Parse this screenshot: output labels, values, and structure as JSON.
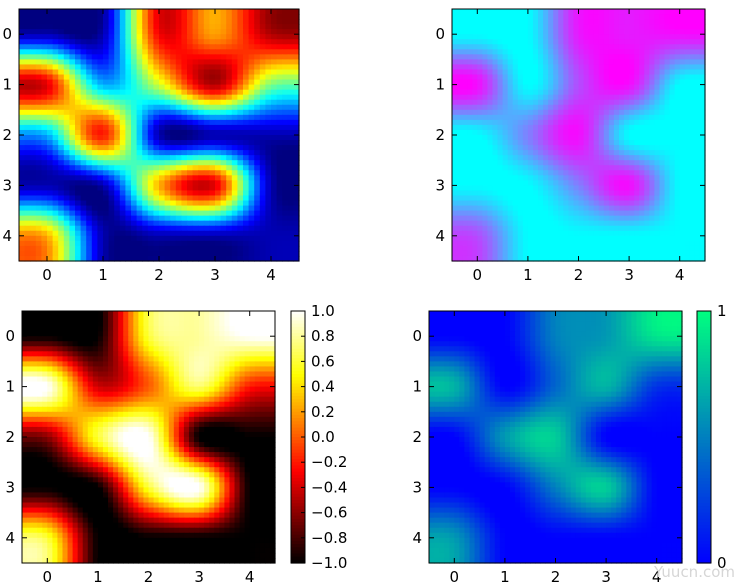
{
  "chart_data": [
    {
      "type": "heatmap",
      "colormap": "jet",
      "interpolation": "bicubic",
      "x": [
        0,
        1,
        2,
        3,
        4
      ],
      "y": [
        0,
        1,
        2,
        3,
        4
      ],
      "xlim": [
        -0.5,
        4.5
      ],
      "ylim": [
        4.5,
        -0.5
      ],
      "x_ticks": [
        "0",
        "1",
        "2",
        "3",
        "4"
      ],
      "y_ticks": [
        "0",
        "1",
        "2",
        "3",
        "4"
      ],
      "values": [
        [
          0.05,
          0.05,
          0.88,
          0.72,
          0.95
        ],
        [
          0.9,
          0.3,
          0.58,
          0.95,
          0.5
        ],
        [
          0.3,
          0.85,
          0.05,
          0.05,
          0.05
        ],
        [
          0.05,
          0.05,
          0.7,
          0.9,
          0.05
        ],
        [
          0.7,
          0.05,
          0.05,
          0.05,
          0.05
        ]
      ],
      "colorbar": null
    },
    {
      "type": "heatmap",
      "colormap": "cool",
      "interpolation": "bicubic",
      "x": [
        0,
        1,
        2,
        3,
        4
      ],
      "y": [
        0,
        1,
        2,
        3,
        4
      ],
      "xlim": [
        -0.5,
        4.5
      ],
      "ylim": [
        4.5,
        -0.5
      ],
      "x_ticks": [
        "0",
        "1",
        "2",
        "3",
        "4"
      ],
      "y_ticks": [
        "0",
        "1",
        "2",
        "3",
        "4"
      ],
      "values": [
        [
          0.0,
          0.0,
          0.9,
          0.9,
          0.95
        ],
        [
          0.95,
          0.0,
          0.7,
          0.95,
          0.0
        ],
        [
          0.0,
          0.5,
          0.95,
          0.0,
          0.0
        ],
        [
          0.0,
          0.0,
          0.5,
          0.95,
          0.0
        ],
        [
          0.7,
          0.0,
          0.0,
          0.0,
          0.0
        ]
      ],
      "colorbar": null
    },
    {
      "type": "heatmap",
      "colormap": "hot",
      "interpolation": "bicubic",
      "x": [
        0,
        1,
        2,
        3,
        4
      ],
      "y": [
        0,
        1,
        2,
        3,
        4
      ],
      "xlim": [
        -0.5,
        4.5
      ],
      "ylim": [
        4.5,
        -0.5
      ],
      "x_ticks": [
        "0",
        "1",
        "2",
        "3",
        "4"
      ],
      "y_ticks": [
        "0",
        "1",
        "2",
        "3",
        "4"
      ],
      "values": [
        [
          -1.0,
          -1.0,
          0.6,
          0.8,
          1.0
        ],
        [
          1.0,
          -0.4,
          0.0,
          0.7,
          -0.2
        ],
        [
          -0.6,
          0.6,
          1.0,
          -1.0,
          -1.0
        ],
        [
          -1.0,
          -1.0,
          0.6,
          1.0,
          -1.0
        ],
        [
          0.6,
          -1.0,
          -1.0,
          -1.0,
          -1.0
        ]
      ],
      "colorbar": {
        "min": -1.0,
        "max": 1.0,
        "ticks": [
          1.0,
          0.8,
          0.6,
          0.4,
          0.2,
          0.0,
          -0.2,
          -0.4,
          -0.6,
          -0.8,
          -1.0
        ],
        "tick_labels": [
          "1.0",
          "0.8",
          "0.6",
          "0.4",
          "0.2",
          "0.0",
          "−0.2",
          "−0.4",
          "−0.6",
          "−0.8",
          "−1.0"
        ]
      }
    },
    {
      "type": "heatmap",
      "colormap": "winter",
      "interpolation": "bicubic",
      "x": [
        0,
        1,
        2,
        3,
        4
      ],
      "y": [
        0,
        1,
        2,
        3,
        4
      ],
      "xlim": [
        -0.5,
        4.5
      ],
      "ylim": [
        4.5,
        -0.5
      ],
      "x_ticks": [
        "0",
        "1",
        "2",
        "3",
        "4"
      ],
      "y_ticks": [
        "0",
        "1",
        "2",
        "3",
        "4"
      ],
      "values": [
        [
          0.0,
          0.0,
          0.5,
          0.6,
          0.9
        ],
        [
          0.7,
          0.0,
          0.4,
          0.7,
          0.2
        ],
        [
          0.0,
          0.6,
          0.8,
          0.0,
          0.0
        ],
        [
          0.0,
          0.0,
          0.5,
          0.8,
          0.0
        ],
        [
          0.6,
          0.0,
          0.0,
          0.0,
          0.0
        ]
      ],
      "colorbar": {
        "min": 0,
        "max": 1,
        "ticks": [
          1,
          0
        ],
        "tick_labels": [
          "1",
          "0"
        ]
      }
    }
  ],
  "watermark": "Yuucn.com"
}
